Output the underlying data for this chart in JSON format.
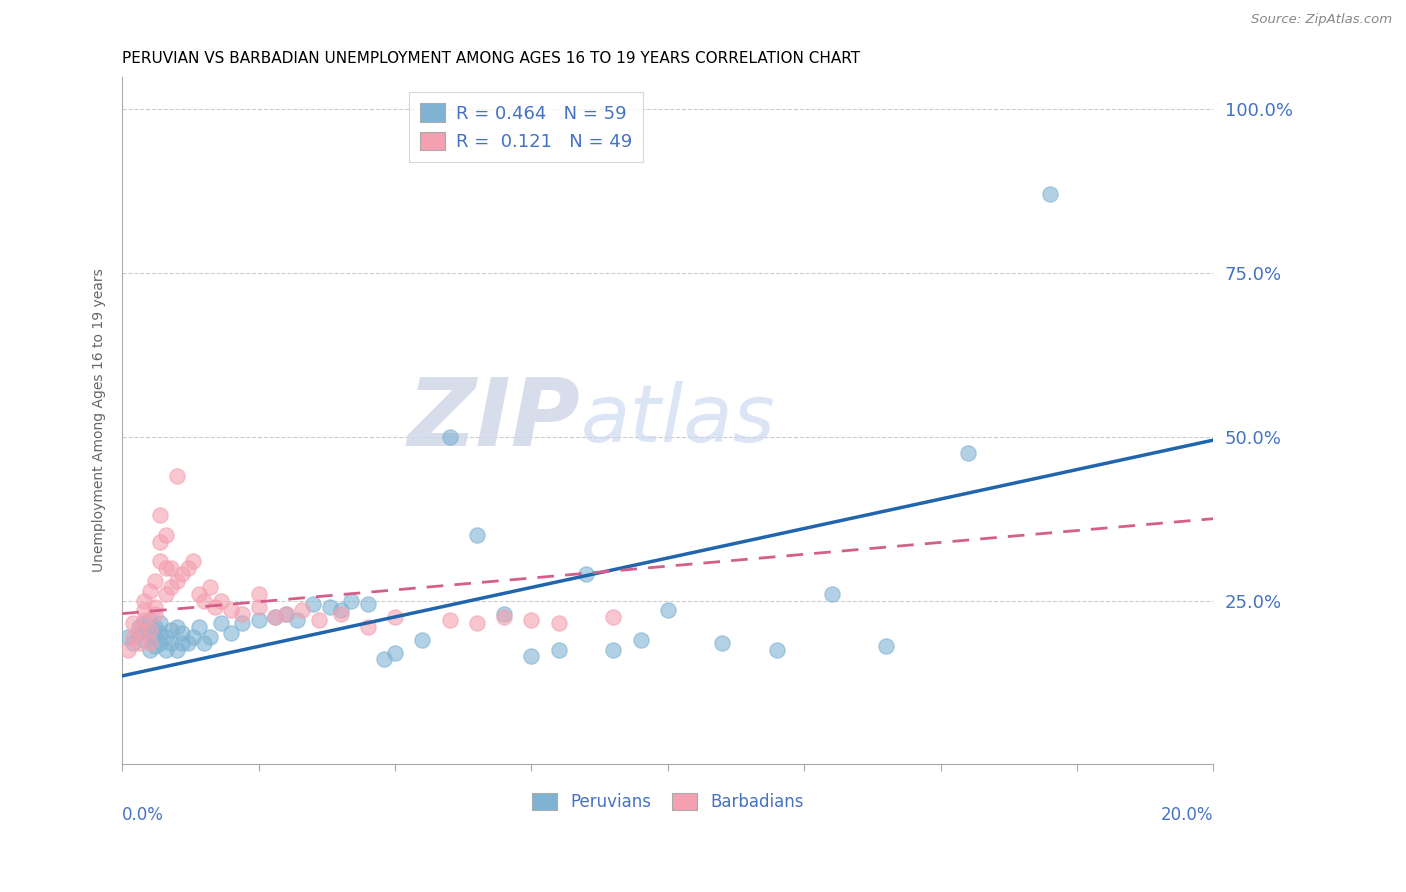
{
  "title": "PERUVIAN VS BARBADIAN UNEMPLOYMENT AMONG AGES 16 TO 19 YEARS CORRELATION CHART",
  "source": "Source: ZipAtlas.com",
  "ylabel": "Unemployment Among Ages 16 to 19 years",
  "blue_color": "#7fb3d3",
  "pink_color": "#f4a0b0",
  "trend_blue": "#2166ac",
  "trend_pink": "#d45f8a",
  "watermark_zip": "ZIP",
  "watermark_atlas": "atlas",
  "legend_line1": "R = 0.464   N = 59",
  "legend_line2": "R =  0.121   N = 49",
  "blue_scatter_x": [
    0.001,
    0.002,
    0.003,
    0.003,
    0.004,
    0.004,
    0.005,
    0.005,
    0.005,
    0.005,
    0.006,
    0.006,
    0.006,
    0.007,
    0.007,
    0.007,
    0.008,
    0.008,
    0.009,
    0.009,
    0.01,
    0.01,
    0.011,
    0.011,
    0.012,
    0.013,
    0.014,
    0.015,
    0.016,
    0.018,
    0.02,
    0.022,
    0.025,
    0.028,
    0.03,
    0.032,
    0.035,
    0.038,
    0.04,
    0.042,
    0.045,
    0.048,
    0.05,
    0.055,
    0.06,
    0.065,
    0.07,
    0.075,
    0.08,
    0.085,
    0.09,
    0.095,
    0.1,
    0.11,
    0.12,
    0.13,
    0.14,
    0.155,
    0.17
  ],
  "blue_scatter_y": [
    0.195,
    0.185,
    0.2,
    0.21,
    0.19,
    0.215,
    0.175,
    0.195,
    0.205,
    0.22,
    0.18,
    0.195,
    0.21,
    0.185,
    0.2,
    0.215,
    0.175,
    0.195,
    0.185,
    0.205,
    0.175,
    0.21,
    0.185,
    0.2,
    0.185,
    0.195,
    0.21,
    0.185,
    0.195,
    0.215,
    0.2,
    0.215,
    0.22,
    0.225,
    0.23,
    0.22,
    0.245,
    0.24,
    0.235,
    0.25,
    0.245,
    0.16,
    0.17,
    0.19,
    0.5,
    0.35,
    0.23,
    0.165,
    0.175,
    0.29,
    0.175,
    0.19,
    0.235,
    0.185,
    0.175,
    0.26,
    0.18,
    0.475,
    0.87
  ],
  "pink_scatter_x": [
    0.001,
    0.002,
    0.002,
    0.003,
    0.003,
    0.004,
    0.004,
    0.004,
    0.005,
    0.005,
    0.005,
    0.006,
    0.006,
    0.006,
    0.007,
    0.007,
    0.007,
    0.008,
    0.008,
    0.008,
    0.009,
    0.009,
    0.01,
    0.01,
    0.011,
    0.012,
    0.013,
    0.014,
    0.015,
    0.016,
    0.017,
    0.018,
    0.02,
    0.022,
    0.025,
    0.025,
    0.028,
    0.03,
    0.033,
    0.036,
    0.04,
    0.045,
    0.05,
    0.06,
    0.065,
    0.07,
    0.075,
    0.08,
    0.09
  ],
  "pink_scatter_y": [
    0.175,
    0.195,
    0.215,
    0.185,
    0.205,
    0.22,
    0.235,
    0.25,
    0.185,
    0.205,
    0.265,
    0.23,
    0.24,
    0.28,
    0.31,
    0.34,
    0.38,
    0.26,
    0.3,
    0.35,
    0.27,
    0.3,
    0.28,
    0.44,
    0.29,
    0.3,
    0.31,
    0.26,
    0.25,
    0.27,
    0.24,
    0.25,
    0.235,
    0.23,
    0.24,
    0.26,
    0.225,
    0.23,
    0.235,
    0.22,
    0.23,
    0.21,
    0.225,
    0.22,
    0.215,
    0.225,
    0.22,
    0.215,
    0.225
  ],
  "xlim": [
    0.0,
    0.2
  ],
  "ylim": [
    0.0,
    1.05
  ],
  "yticks": [
    0.25,
    0.5,
    0.75,
    1.0
  ],
  "ytick_labels": [
    "25.0%",
    "50.0%",
    "75.0%",
    "100.0%"
  ],
  "xtick_positions": [
    0.0,
    0.025,
    0.05,
    0.075,
    0.1,
    0.125,
    0.15,
    0.175,
    0.2
  ]
}
